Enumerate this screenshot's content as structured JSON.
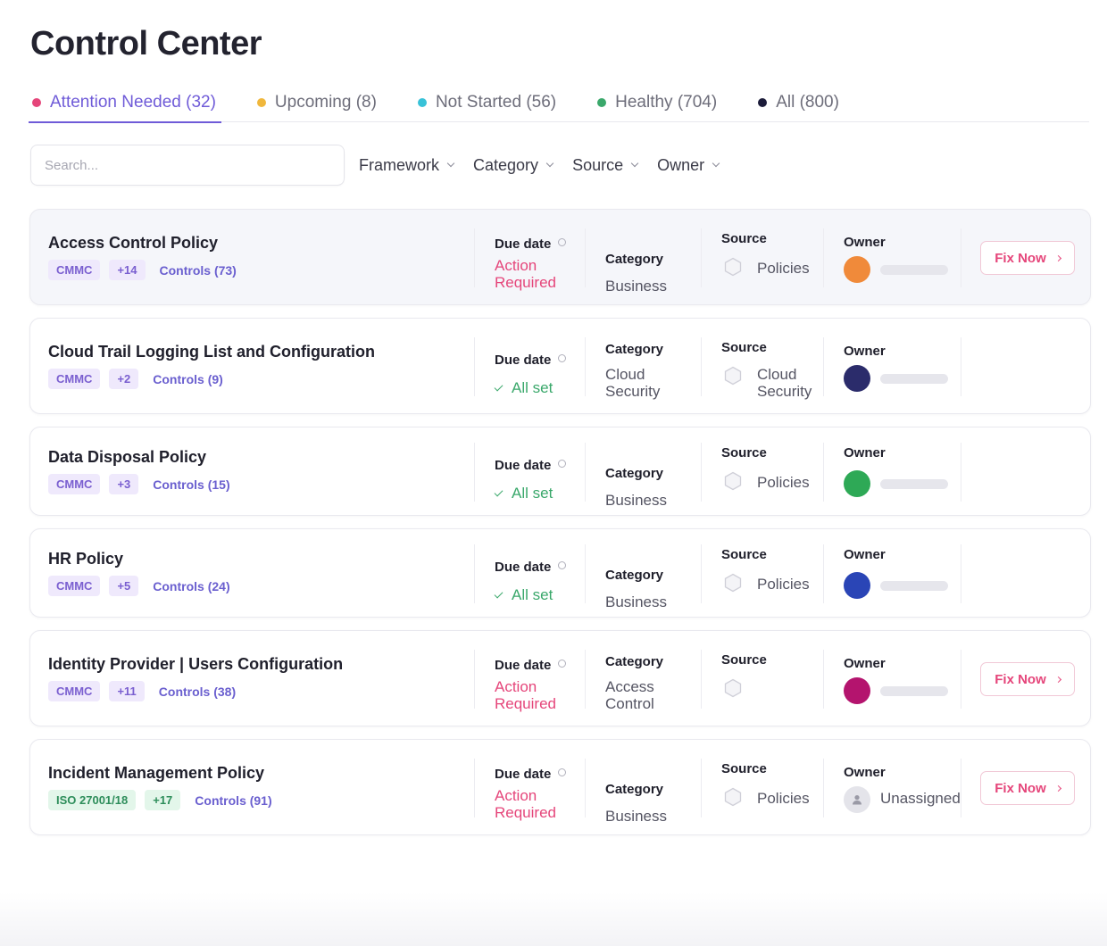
{
  "page": {
    "title": "Control Center"
  },
  "tabs": [
    {
      "label": "Attention Needed (32)",
      "color": "#e5457a",
      "active": true
    },
    {
      "label": "Upcoming (8)",
      "color": "#f0b73c",
      "active": false
    },
    {
      "label": "Not Started (56)",
      "color": "#38c2d8",
      "active": false
    },
    {
      "label": "Healthy (704)",
      "color": "#3aa86b",
      "active": false
    },
    {
      "label": "All (800)",
      "color": "#1c1c3a",
      "active": false
    }
  ],
  "filters": {
    "search_placeholder": "Search...",
    "items": [
      "Framework",
      "Category",
      "Source",
      "Owner"
    ]
  },
  "headers": {
    "due_date": "Due date",
    "category": "Category",
    "source": "Source",
    "owner": "Owner"
  },
  "fix_label": "Fix Now",
  "rows": [
    {
      "name": "Access Control Policy",
      "framework": "CMMC",
      "extra": "+14",
      "controls": "Controls (73)",
      "status": "Action Required",
      "status_type": "action",
      "category": "Business",
      "source": "Policies",
      "owner_color": "#f08a3a",
      "owner_text": "",
      "fix": true
    },
    {
      "name": "Cloud Trail Logging List and Configuration",
      "framework": "CMMC",
      "extra": "+2",
      "controls": "Controls (9)",
      "status": "All set",
      "status_type": "ok",
      "category": "Cloud Security",
      "source": "Cloud Security",
      "owner_color": "#2b2c6b",
      "owner_text": "",
      "fix": false
    },
    {
      "name": "Data Disposal Policy",
      "framework": "CMMC",
      "extra": "+3",
      "controls": "Controls (15)",
      "status": "All set",
      "status_type": "ok",
      "category": "Business",
      "source": "Policies",
      "owner_color": "#2ea956",
      "owner_text": "",
      "fix": false
    },
    {
      "name": "HR Policy",
      "framework": "CMMC",
      "extra": "+5",
      "controls": "Controls (24)",
      "status": "All set",
      "status_type": "ok",
      "category": "Business",
      "source": "Policies",
      "owner_color": "#2a45b6",
      "owner_text": "",
      "fix": false
    },
    {
      "name": "Identity Provider | Users Configuration",
      "framework": "CMMC",
      "extra": "+11",
      "controls": "Controls (38)",
      "status": "Action Required",
      "status_type": "action",
      "category": "Access Control",
      "source": "",
      "owner_color": "#b4146e",
      "owner_text": "",
      "fix": true
    },
    {
      "name": "Incident Management Policy",
      "framework": "ISO 27001/18",
      "extra": "+17",
      "controls": "Controls (91)",
      "status": "Action Required",
      "status_type": "action",
      "category": "Business",
      "source": "Policies",
      "owner_color": "",
      "owner_text": "Unassigned",
      "fix": true
    }
  ]
}
